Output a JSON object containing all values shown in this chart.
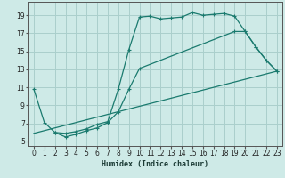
{
  "xlabel": "Humidex (Indice chaleur)",
  "bg_color": "#ceeae7",
  "grid_color": "#aacfcc",
  "line_color": "#1a7a6e",
  "xlim": [
    -0.5,
    23.5
  ],
  "ylim": [
    4.5,
    20.5
  ],
  "yticks": [
    5,
    7,
    9,
    11,
    13,
    15,
    17,
    19
  ],
  "xticks": [
    0,
    1,
    2,
    3,
    4,
    5,
    6,
    7,
    8,
    9,
    10,
    11,
    12,
    13,
    14,
    15,
    16,
    17,
    18,
    19,
    20,
    21,
    22,
    23
  ],
  "line1_x": [
    0,
    1,
    2,
    3,
    4,
    5,
    6,
    7,
    8,
    9,
    10,
    11,
    12,
    13,
    14,
    15,
    16,
    17,
    18,
    19,
    20,
    21,
    22,
    23
  ],
  "line1_y": [
    10.8,
    7.1,
    6.0,
    5.9,
    6.1,
    6.4,
    6.9,
    7.2,
    10.8,
    15.2,
    18.8,
    18.9,
    18.6,
    18.7,
    18.8,
    19.3,
    19.0,
    19.1,
    19.2,
    18.9,
    17.2,
    15.5,
    14.0,
    12.8
  ],
  "line2_x": [
    2,
    3,
    4,
    5,
    6,
    7,
    8,
    9,
    10,
    19,
    20,
    21,
    22,
    23
  ],
  "line2_y": [
    6.0,
    5.5,
    5.8,
    6.2,
    6.5,
    7.1,
    8.3,
    10.8,
    13.1,
    17.2,
    17.2,
    15.5,
    14.0,
    12.8
  ],
  "line3_x": [
    0,
    23
  ],
  "line3_y": [
    5.9,
    12.8
  ]
}
